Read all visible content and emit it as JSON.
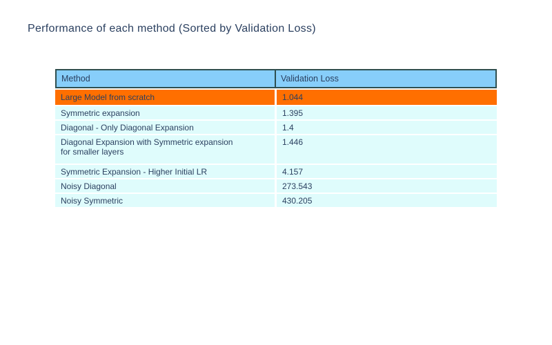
{
  "title": "Performance of each method (Sorted by Validation Loss)",
  "colors": {
    "header_bg": "#87cefa",
    "row_bg": "#dffcfc",
    "highlight_bg": "#ff6f00",
    "border": "#2f4f4f",
    "text": "#2a3f5f"
  },
  "chart_data": {
    "type": "table",
    "title": "Performance of each method (Sorted by Validation Loss)",
    "sorted_by": "Validation Loss",
    "columns": [
      "Method",
      "Validation Loss"
    ],
    "highlighted_row_index": 0,
    "rows": [
      {
        "method": "Large Model from scratch",
        "loss": "1.044",
        "highlight": true
      },
      {
        "method": "Symmetric expansion",
        "loss": "1.395",
        "highlight": false
      },
      {
        "method": "Diagonal - Only Diagonal Expansion",
        "loss": "1.4",
        "highlight": false
      },
      {
        "method": "Diagonal Expansion with Symmetric expansion\nfor smaller layers",
        "loss": "1.446",
        "highlight": false
      },
      {
        "method": "Symmetric Expansion - Higher Initial LR",
        "loss": "4.157",
        "highlight": false
      },
      {
        "method": "Noisy Diagonal",
        "loss": "273.543",
        "highlight": false
      },
      {
        "method": "Noisy Symmetric",
        "loss": "430.205",
        "highlight": false
      }
    ]
  }
}
